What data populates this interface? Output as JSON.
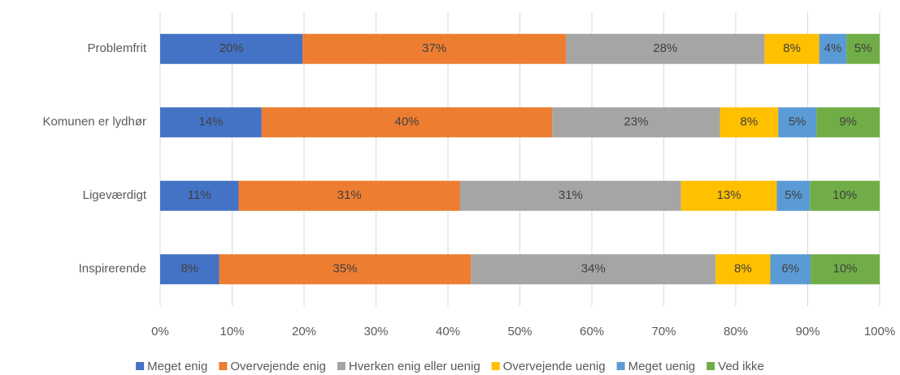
{
  "chart_data": {
    "type": "stacked-barh",
    "categories": [
      "Problemfrit",
      "Komunen er lydhør",
      "Ligeværdigt",
      "Inspirerende"
    ],
    "series": [
      {
        "name": "Meget enig",
        "color": "#4472c4",
        "values": [
          19.8,
          14.1,
          10.9,
          8.2
        ],
        "value_labels": [
          "20%",
          "14%",
          "11%",
          "8%"
        ]
      },
      {
        "name": "Overvejende enig",
        "color": "#ed7d31",
        "values": [
          36.6,
          40.4,
          30.8,
          35.0
        ],
        "value_labels": [
          "37%",
          "40%",
          "31%",
          "35%"
        ]
      },
      {
        "name": "Hverken enig eller uenig",
        "color": "#a5a5a5",
        "values": [
          27.6,
          23.3,
          30.7,
          34.0
        ],
        "value_labels": [
          "28%",
          "23%",
          "31%",
          "34%"
        ]
      },
      {
        "name": "Overvejende uenig",
        "color": "#ffc000",
        "values": [
          7.6,
          8.1,
          13.3,
          7.6
        ],
        "value_labels": [
          "8%",
          "8%",
          "13%",
          "8%"
        ]
      },
      {
        "name": "Meget uenig",
        "color": "#5b9bd5",
        "values": [
          3.8,
          5.3,
          4.6,
          5.6
        ],
        "value_labels": [
          "4%",
          "5%",
          "5%",
          "6%"
        ]
      },
      {
        "name": "Ved ikke",
        "color": "#70ad47",
        "values": [
          4.6,
          8.8,
          9.7,
          9.6
        ],
        "value_labels": [
          "5%",
          "9%",
          "10%",
          "10%"
        ]
      }
    ],
    "xlim": [
      0,
      100
    ],
    "xticks": [
      {
        "value": 0,
        "label": "0%"
      },
      {
        "value": 10,
        "label": "10%"
      },
      {
        "value": 20,
        "label": "20%"
      },
      {
        "value": 30,
        "label": "30%"
      },
      {
        "value": 40,
        "label": "40%"
      },
      {
        "value": 50,
        "label": "50%"
      },
      {
        "value": 60,
        "label": "60%"
      },
      {
        "value": 70,
        "label": "70%"
      },
      {
        "value": 80,
        "label": "80%"
      },
      {
        "value": 90,
        "label": "90%"
      },
      {
        "value": 100,
        "label": "100%"
      }
    ],
    "grid": true,
    "legend": "bottom"
  }
}
